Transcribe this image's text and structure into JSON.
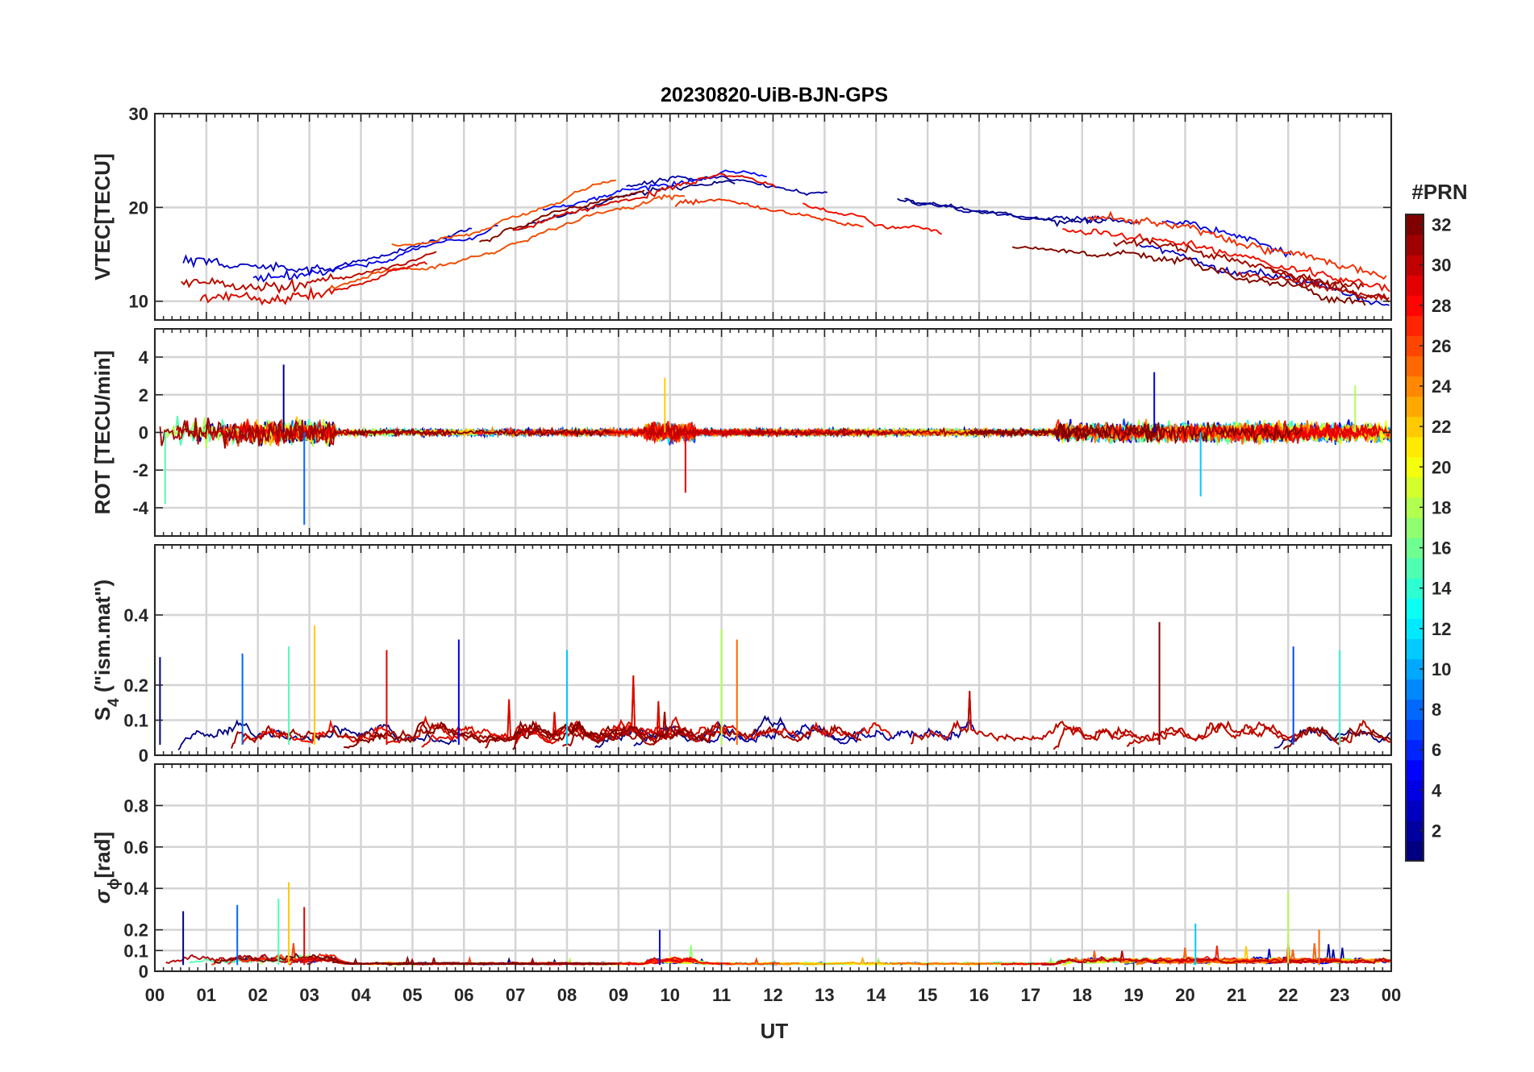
{
  "chart_data": {
    "type": "line",
    "title": "20230820-UiB-BJN-GPS",
    "xlabel": "UT",
    "x_ticks": [
      "00",
      "01",
      "02",
      "03",
      "04",
      "05",
      "06",
      "07",
      "08",
      "09",
      "10",
      "11",
      "12",
      "13",
      "14",
      "15",
      "16",
      "17",
      "18",
      "19",
      "20",
      "21",
      "22",
      "23",
      "00"
    ],
    "xlim": [
      0,
      24
    ],
    "panels": [
      {
        "id": "vtec",
        "ylabel": "VTEC[TECU]",
        "ylim": [
          8,
          30
        ],
        "yticks": [
          10,
          20,
          30
        ],
        "series_mean": [
          {
            "x": 0,
            "y": 12
          },
          {
            "x": 2,
            "y": 11.5
          },
          {
            "x": 3,
            "y": 12
          },
          {
            "x": 4,
            "y": 13
          },
          {
            "x": 5,
            "y": 14.5
          },
          {
            "x": 6,
            "y": 16
          },
          {
            "x": 7,
            "y": 18
          },
          {
            "x": 8,
            "y": 20
          },
          {
            "x": 9,
            "y": 21.5
          },
          {
            "x": 10,
            "y": 22.5
          },
          {
            "x": 11,
            "y": 23.5
          },
          {
            "x": 12,
            "y": 22.5
          },
          {
            "x": 13,
            "y": 21.5
          },
          {
            "x": 14,
            "y": 20.5
          },
          {
            "x": 15,
            "y": 19.5
          },
          {
            "x": 16,
            "y": 18.5
          },
          {
            "x": 17,
            "y": 18
          },
          {
            "x": 18,
            "y": 17.5
          },
          {
            "x": 19,
            "y": 17
          },
          {
            "x": 20,
            "y": 16
          },
          {
            "x": 21,
            "y": 14.5
          },
          {
            "x": 22,
            "y": 13.5
          },
          {
            "x": 23,
            "y": 12
          },
          {
            "x": 24,
            "y": 11
          }
        ]
      },
      {
        "id": "rot",
        "ylabel": "ROT [TECU/min]",
        "ylim": [
          -5.5,
          5.5
        ],
        "yticks": [
          -4,
          -2,
          0,
          2,
          4
        ],
        "peak_events": [
          {
            "x": 2.5,
            "y": 3.6
          },
          {
            "x": 2.9,
            "y": -4.9
          },
          {
            "x": 0.2,
            "y": -3.8
          },
          {
            "x": 9.9,
            "y": 2.9
          },
          {
            "x": 10.3,
            "y": -3.2
          },
          {
            "x": 19.4,
            "y": 3.2
          },
          {
            "x": 20.3,
            "y": -3.4
          },
          {
            "x": 23.3,
            "y": 2.5
          }
        ]
      },
      {
        "id": "s4",
        "ylabel": "S",
        "ylabel_sub": "4",
        "ylabel_suffix": " (\"ism.mat\")",
        "ylim": [
          0,
          0.6
        ],
        "yticks": [
          0,
          0.1,
          0.2,
          0.4
        ],
        "peak_events": [
          {
            "x": 0.1,
            "y": 0.28
          },
          {
            "x": 1.7,
            "y": 0.29
          },
          {
            "x": 2.6,
            "y": 0.31
          },
          {
            "x": 3.1,
            "y": 0.37
          },
          {
            "x": 4.5,
            "y": 0.3
          },
          {
            "x": 5.9,
            "y": 0.33
          },
          {
            "x": 8.0,
            "y": 0.3
          },
          {
            "x": 11.0,
            "y": 0.36
          },
          {
            "x": 11.3,
            "y": 0.33
          },
          {
            "x": 19.5,
            "y": 0.38
          },
          {
            "x": 22.1,
            "y": 0.31
          },
          {
            "x": 23.0,
            "y": 0.3
          }
        ]
      },
      {
        "id": "sigma_phi",
        "ylabel": "σ",
        "ylabel_sub": "ϕ",
        "ylabel_suffix": "[rad]",
        "ylim": [
          0,
          1
        ],
        "yticks": [
          0,
          0.1,
          0.2,
          0.4,
          0.6,
          0.8
        ],
        "peak_events": [
          {
            "x": 0.55,
            "y": 0.29
          },
          {
            "x": 1.6,
            "y": 0.32
          },
          {
            "x": 2.4,
            "y": 0.35
          },
          {
            "x": 2.6,
            "y": 0.43
          },
          {
            "x": 2.9,
            "y": 0.31
          },
          {
            "x": 9.8,
            "y": 0.2
          },
          {
            "x": 20.2,
            "y": 0.23
          },
          {
            "x": 22.0,
            "y": 0.38
          },
          {
            "x": 22.6,
            "y": 0.2
          }
        ]
      }
    ],
    "colorbar": {
      "label": "#PRN",
      "range": [
        1,
        32
      ],
      "ticks": [
        "2",
        "4",
        "6",
        "8",
        "10",
        "12",
        "14",
        "16",
        "18",
        "20",
        "22",
        "24",
        "26",
        "28",
        "30",
        "32"
      ],
      "colormap": "jet"
    },
    "n_series": 32,
    "grid": true
  }
}
